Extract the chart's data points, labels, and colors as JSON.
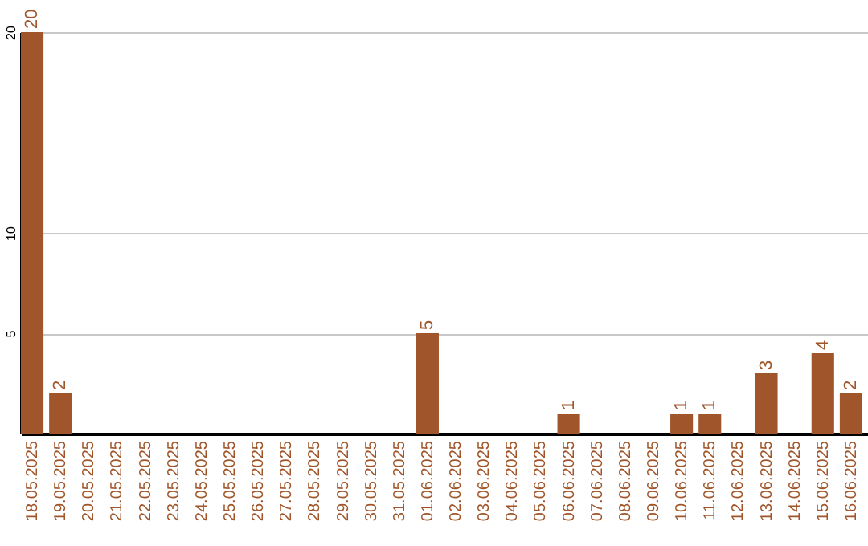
{
  "chart_data": {
    "type": "bar",
    "categories": [
      "18.05.2025",
      "19.05.2025",
      "20.05.2025",
      "21.05.2025",
      "22.05.2025",
      "23.05.2025",
      "24.05.2025",
      "25.05.2025",
      "26.05.2025",
      "27.05.2025",
      "28.05.2025",
      "29.05.2025",
      "30.05.2025",
      "31.05.2025",
      "01.06.2025",
      "02.06.2025",
      "03.06.2025",
      "04.06.2025",
      "05.06.2025",
      "06.06.2025",
      "07.06.2025",
      "08.06.2025",
      "09.06.2025",
      "10.06.2025",
      "11.06.2025",
      "12.06.2025",
      "13.06.2025",
      "14.06.2025",
      "15.06.2025",
      "16.06.2025"
    ],
    "values": [
      20,
      2,
      0,
      0,
      0,
      0,
      0,
      0,
      0,
      0,
      0,
      0,
      0,
      0,
      5,
      0,
      0,
      0,
      0,
      1,
      0,
      0,
      0,
      1,
      1,
      0,
      3,
      0,
      4,
      2
    ],
    "value_labels": [
      "20",
      "2",
      null,
      null,
      null,
      null,
      null,
      null,
      null,
      null,
      null,
      null,
      null,
      null,
      "5",
      null,
      null,
      null,
      null,
      "1",
      null,
      null,
      null,
      "1",
      "1",
      null,
      "3",
      null,
      "4",
      "2"
    ],
    "color": "#a0562a",
    "ylim": [
      0,
      20
    ],
    "yticks": [
      5,
      10,
      20
    ],
    "grid": "y"
  }
}
